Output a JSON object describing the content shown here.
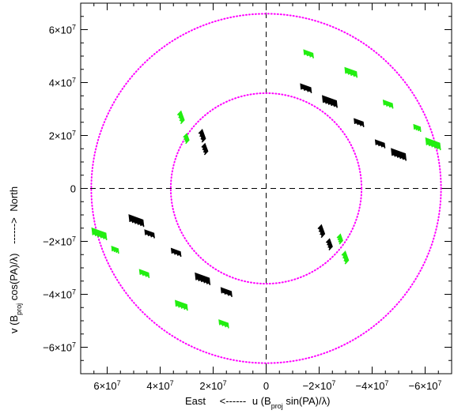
{
  "chart_data": {
    "type": "scatter",
    "title": "",
    "xlabel": "East  <------  u (B_proj sin(PA)/λ)",
    "ylabel": "v (B_proj cos(PA)/λ)  ------> North",
    "x_reversed": true,
    "xlim": [
      70000000,
      -70000000
    ],
    "ylim": [
      -70000000,
      70000000
    ],
    "xticks": [
      {
        "value": 60000000,
        "label": "6×10^7"
      },
      {
        "value": 40000000,
        "label": "4×10^7"
      },
      {
        "value": 20000000,
        "label": "2×10^7"
      },
      {
        "value": 0,
        "label": "0"
      },
      {
        "value": -20000000,
        "label": "−2×10^7"
      },
      {
        "value": -40000000,
        "label": "−4×10^7"
      },
      {
        "value": -60000000,
        "label": "−6×10^7"
      }
    ],
    "yticks": [
      {
        "value": 60000000,
        "label": "6×10^7"
      },
      {
        "value": 40000000,
        "label": "4×10^7"
      },
      {
        "value": 20000000,
        "label": "2×10^7"
      },
      {
        "value": 0,
        "label": "0"
      },
      {
        "value": -20000000,
        "label": "−2×10^7"
      },
      {
        "value": -40000000,
        "label": "−4×10^7"
      },
      {
        "value": -60000000,
        "label": "−6×10^7"
      }
    ],
    "reference_circles": [
      {
        "radius": 36000000,
        "color": "#ff00ff",
        "style": "dotted"
      },
      {
        "radius": 66000000,
        "color": "#ff00ff",
        "style": "dotted"
      }
    ],
    "reference_lines": [
      {
        "axis": "x",
        "value": 0,
        "style": "dashed",
        "color": "#000000"
      },
      {
        "axis": "y",
        "value": 0,
        "style": "dashed",
        "color": "#000000"
      }
    ],
    "series": [
      {
        "color": "#000000",
        "clusters": [
          {
            "u": -15000000,
            "v": 38000000,
            "size": 4000000,
            "angle": 20
          },
          {
            "u": -24000000,
            "v": 33000000,
            "size": 5500000,
            "angle": 20
          },
          {
            "u": -35000000,
            "v": 25000000,
            "size": 3500000,
            "angle": 20
          },
          {
            "u": -43000000,
            "v": 17000000,
            "size": 3500000,
            "angle": 20
          },
          {
            "u": -50000000,
            "v": 13000000,
            "size": 5500000,
            "angle": 20
          },
          {
            "u": 24000000,
            "v": 20000000,
            "size": 3500000,
            "angle": 70
          },
          {
            "u": 23000000,
            "v": 15000000,
            "size": 3000000,
            "angle": 70
          },
          {
            "u": -21000000,
            "v": -16000000,
            "size": 3500000,
            "angle": 70
          },
          {
            "u": -24000000,
            "v": -21000000,
            "size": 3000000,
            "angle": 70
          },
          {
            "u": 49000000,
            "v": -12000000,
            "size": 5500000,
            "angle": 20
          },
          {
            "u": 44000000,
            "v": -17000000,
            "size": 3500000,
            "angle": 20
          },
          {
            "u": 34000000,
            "v": -24000000,
            "size": 3500000,
            "angle": 20
          },
          {
            "u": 24000000,
            "v": -34000000,
            "size": 5500000,
            "angle": 20
          },
          {
            "u": 15000000,
            "v": -39000000,
            "size": 4000000,
            "angle": 20
          }
        ]
      },
      {
        "color": "#22ee11",
        "clusters": [
          {
            "u": -16000000,
            "v": 51000000,
            "size": 3500000,
            "angle": 20
          },
          {
            "u": -32000000,
            "v": 44000000,
            "size": 4500000,
            "angle": 20
          },
          {
            "u": -46000000,
            "v": 32000000,
            "size": 3500000,
            "angle": 20
          },
          {
            "u": -57000000,
            "v": 23000000,
            "size": 2500000,
            "angle": 20
          },
          {
            "u": -63000000,
            "v": 17000000,
            "size": 5500000,
            "angle": 20
          },
          {
            "u": 32000000,
            "v": 27000000,
            "size": 3500000,
            "angle": 70
          },
          {
            "u": 30000000,
            "v": 19000000,
            "size": 2500000,
            "angle": 70
          },
          {
            "u": -28000000,
            "v": -19000000,
            "size": 2500000,
            "angle": 70
          },
          {
            "u": -30000000,
            "v": -26000000,
            "size": 3500000,
            "angle": 70
          },
          {
            "u": 63000000,
            "v": -17000000,
            "size": 5500000,
            "angle": 20
          },
          {
            "u": 57000000,
            "v": -23000000,
            "size": 2500000,
            "angle": 20
          },
          {
            "u": 46000000,
            "v": -32000000,
            "size": 3500000,
            "angle": 20
          },
          {
            "u": 32000000,
            "v": -44000000,
            "size": 4500000,
            "angle": 20
          },
          {
            "u": 16000000,
            "v": -51000000,
            "size": 3500000,
            "angle": 20
          }
        ]
      }
    ]
  }
}
